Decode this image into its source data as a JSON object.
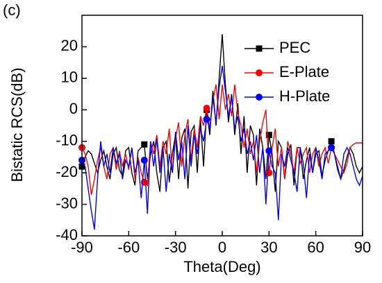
{
  "chart_data": {
    "type": "line",
    "panel_label": "(c)",
    "x_label": "Theta(Deg)",
    "y_label": "Bistatic RCS(dB)",
    "x": [
      -90,
      -88,
      -86,
      -84,
      -82,
      -80,
      -78,
      -76,
      -74,
      -72,
      -70,
      -68,
      -66,
      -64,
      -62,
      -60,
      -58,
      -56,
      -54,
      -52,
      -50,
      -48,
      -46,
      -44,
      -42,
      -40,
      -38,
      -36,
      -34,
      -32,
      -30,
      -28,
      -26,
      -24,
      -22,
      -20,
      -18,
      -16,
      -14,
      -12,
      -10,
      -8,
      -6,
      -4,
      -2,
      0,
      2,
      4,
      6,
      8,
      10,
      12,
      14,
      16,
      18,
      20,
      22,
      24,
      26,
      28,
      30,
      32,
      34,
      36,
      38,
      40,
      42,
      44,
      46,
      48,
      50,
      52,
      54,
      56,
      58,
      60,
      62,
      64,
      66,
      68,
      70,
      72,
      74,
      76,
      78,
      80,
      82,
      84,
      86,
      88,
      90
    ],
    "series": [
      {
        "name": "PEC",
        "color": "#000000",
        "marker": "square",
        "values": [
          -18,
          -15,
          -13,
          -14,
          -17,
          -20,
          -16,
          -13,
          -18,
          -22,
          -14,
          -12,
          -19,
          -21,
          -13,
          -12,
          -20,
          -24,
          -13,
          -12,
          -11,
          -22,
          -14,
          -10,
          -20,
          -26,
          -12,
          -10,
          -23,
          -14,
          -8,
          -22,
          -9,
          -6,
          -25,
          -7,
          -5,
          -20,
          -3,
          -18,
          0,
          -8,
          6,
          -5,
          10,
          24,
          8,
          -4,
          5,
          -8,
          2,
          -14,
          -2,
          -20,
          -5,
          -8,
          -24,
          -6,
          -12,
          -22,
          -8,
          -14,
          -26,
          -10,
          -12,
          -22,
          -14,
          -11,
          -24,
          -12,
          -12,
          -22,
          -16,
          -12,
          -20,
          -14,
          -13,
          -21,
          -16,
          -13,
          -10,
          -14,
          -19,
          -22,
          -19,
          -15,
          -12,
          -14,
          -18,
          -20,
          -18
        ]
      },
      {
        "name": "E-Plate",
        "color": "#ff0000",
        "marker": "circle",
        "values": [
          -12,
          -14,
          -18,
          -27,
          -22,
          -16,
          -12,
          -18,
          -22,
          -14,
          -12,
          -19,
          -13,
          -18,
          -14,
          -19,
          -12,
          -22,
          -15,
          -20,
          -23,
          -24,
          -10,
          -14,
          -8,
          -18,
          -10,
          -14,
          -6,
          -20,
          -9,
          -4,
          -18,
          -8,
          -3,
          -16,
          -6,
          -12,
          -2,
          -5,
          0.5,
          -6,
          3,
          8,
          -3,
          8,
          0,
          5,
          -2,
          8,
          -1,
          -5,
          -12,
          -6,
          -14,
          -10,
          -20,
          -10,
          -4,
          0,
          -20,
          -12,
          -6,
          -18,
          -12,
          -22,
          -10,
          -14,
          -20,
          -12,
          -17,
          -14,
          -12,
          -20,
          -14,
          -12,
          -18,
          -14,
          -12,
          -17,
          -12,
          -14,
          -16,
          -18,
          -20,
          -17,
          -12,
          -11,
          -10.5,
          -10.5,
          -10.5
        ]
      },
      {
        "name": "H-Plate",
        "color": "#0000ff",
        "marker": "circle",
        "values": [
          -16,
          -18,
          -25,
          -32,
          -38,
          -22,
          -10,
          -18,
          -14,
          -20,
          -12,
          -17,
          -14,
          -22,
          -16,
          -18,
          -12,
          -20,
          -16,
          -28,
          -16,
          -33,
          -10,
          -18,
          -9,
          -20,
          -12,
          -26,
          -14,
          -20,
          -7,
          -16,
          -10,
          -22,
          -5,
          -18,
          -8,
          -14,
          -6,
          -10,
          -3,
          -6,
          4,
          -4,
          7,
          14,
          6,
          -2,
          4,
          -6,
          -2,
          -10,
          -6,
          -14,
          -10,
          -16,
          -8,
          -20,
          -12,
          -30,
          -13,
          -18,
          -20,
          -35,
          -14,
          -18,
          -12,
          -16,
          -20,
          -26,
          -12,
          -17,
          -28,
          -14,
          -20,
          -12,
          -16,
          -22,
          -14,
          -13,
          -12,
          -14,
          -18,
          -22,
          -14,
          -12,
          -14,
          -18,
          -22,
          -24,
          -21
        ]
      }
    ],
    "xlim": [
      -90,
      90
    ],
    "xticks": [
      -90,
      -60,
      -30,
      0,
      30,
      60,
      90
    ],
    "ylim": [
      -40,
      30
    ],
    "yticks": [
      -40,
      -30,
      -20,
      -10,
      0,
      10,
      20
    ],
    "legend": "upper right",
    "grid": false
  }
}
